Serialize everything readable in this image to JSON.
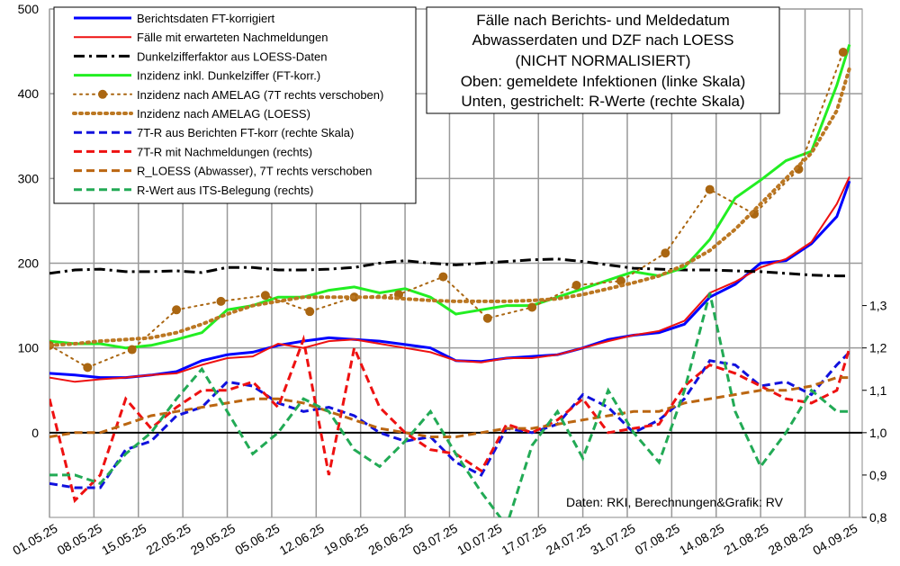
{
  "chart_data": {
    "type": "line",
    "annotations": [
      "Fälle nach Berichts- und Meldedatum",
      "Abwasserdaten und DZF nach LOESS",
      "(NICHT NORMALISIERT)",
      "Oben: gemeldete Infektionen (linke Skala)",
      "Unten, gestrichelt: R-Werte (rechte Skala)",
      "Daten: RKI, Berechnungen&Grafik: RV"
    ],
    "x": [
      "01.05.25",
      "05.05.25",
      "09.05.25",
      "13.05.25",
      "17.05.25",
      "21.05.25",
      "25.05.25",
      "29.05.25",
      "02.06.25",
      "06.06.25",
      "10.06.25",
      "14.06.25",
      "18.06.25",
      "22.06.25",
      "26.06.25",
      "30.06.25",
      "04.07.25",
      "08.07.25",
      "12.07.25",
      "16.07.25",
      "20.07.25",
      "24.07.25",
      "28.07.25",
      "01.08.25",
      "05.08.25",
      "09.08.25",
      "13.08.25",
      "17.08.25",
      "21.08.25",
      "25.08.25",
      "29.08.25",
      "02.09.25",
      "04.09.25"
    ],
    "xlim": [
      "01.05.25",
      "06.09.25"
    ],
    "xticks": [
      "01.05.25",
      "08.05.25",
      "15.05.25",
      "22.05.25",
      "29.05.25",
      "05.06.25",
      "12.06.25",
      "19.06.25",
      "26.06.25",
      "03.07.25",
      "10.07.25",
      "17.07.25",
      "24.07.25",
      "31.07.25",
      "07.08.25",
      "14.08.25",
      "21.08.25",
      "28.08.25",
      "04.09.25"
    ],
    "ylim": [
      -100,
      500
    ],
    "yticks": [
      0,
      100,
      200,
      300,
      400,
      500
    ],
    "y2lim": [
      0.8,
      2.0
    ],
    "y2ticks": [
      {
        "value": 0.8,
        "label": "0,8"
      },
      {
        "value": 0.9,
        "label": "0,9"
      },
      {
        "value": 1.0,
        "label": "1,0"
      },
      {
        "value": 1.1,
        "label": "1,1"
      },
      {
        "value": 1.2,
        "label": "1,2"
      },
      {
        "value": 1.3,
        "label": "1,3"
      }
    ],
    "grid": true,
    "legend": "upper left",
    "series": [
      {
        "name": "Berichtsdaten FT-korrigiert",
        "color": "#0000ff",
        "style": "solid",
        "width": 3,
        "values": [
          70,
          68,
          65,
          65,
          68,
          72,
          85,
          92,
          95,
          103,
          108,
          112,
          110,
          108,
          104,
          100,
          85,
          84,
          88,
          90,
          92,
          100,
          110,
          115,
          118,
          128,
          160,
          175,
          200,
          203,
          223,
          255,
          297
        ]
      },
      {
        "name": "Fälle mit erwarteten Nachmeldungen",
        "color": "#ee1111",
        "style": "solid",
        "width": 2,
        "values": [
          65,
          60,
          63,
          65,
          68,
          70,
          80,
          88,
          90,
          105,
          100,
          108,
          110,
          105,
          100,
          95,
          85,
          83,
          88,
          88,
          92,
          100,
          108,
          115,
          120,
          132,
          165,
          178,
          195,
          205,
          225,
          270,
          302
        ]
      },
      {
        "name": "Dunkelzifferfaktor aus LOESS-Daten",
        "color": "#000000",
        "style": "dashdot",
        "width": 3,
        "values": [
          188,
          192,
          193,
          190,
          190,
          191,
          189,
          195,
          195,
          192,
          192,
          193,
          195,
          200,
          203,
          200,
          198,
          200,
          202,
          204,
          205,
          202,
          198,
          194,
          193,
          192,
          192,
          191,
          190,
          188,
          186,
          185,
          185
        ]
      },
      {
        "name": "Inzidenz inkl. Dunkelziffer (FT-korr.)",
        "color": "#22ee22",
        "style": "solid",
        "width": 3,
        "values": [
          108,
          105,
          105,
          100,
          103,
          110,
          118,
          145,
          150,
          160,
          160,
          168,
          172,
          165,
          170,
          160,
          140,
          145,
          150,
          150,
          160,
          170,
          180,
          190,
          185,
          195,
          228,
          277,
          298,
          321,
          332,
          410,
          458
        ]
      },
      {
        "name": "Inzidenz nach AMELAG (7T rechts verschoben)",
        "color": "#aa6611",
        "style": "dotted",
        "width": 2,
        "marker": true,
        "x": [
          "01.05.25",
          "07.05.25",
          "14.05.25",
          "21.05.25",
          "28.05.25",
          "04.06.25",
          "11.06.25",
          "18.06.25",
          "25.06.25",
          "02.07.25",
          "09.07.25",
          "16.07.25",
          "23.07.25",
          "30.07.25",
          "06.08.25",
          "13.08.25",
          "20.08.25",
          "27.08.25",
          "03.09.25"
        ],
        "values": [
          103,
          77,
          98,
          145,
          155,
          162,
          143,
          160,
          163,
          184,
          135,
          148,
          174,
          179,
          212,
          287,
          258,
          311,
          449
        ]
      },
      {
        "name": "Inzidenz nach AMELAG (LOESS)",
        "color": "#bb7722",
        "style": "dotted",
        "width": 4,
        "values": [
          103,
          105,
          108,
          110,
          112,
          118,
          128,
          140,
          150,
          155,
          160,
          160,
          160,
          160,
          158,
          156,
          155,
          155,
          155,
          156,
          158,
          163,
          170,
          177,
          185,
          198,
          215,
          240,
          270,
          300,
          330,
          380,
          430
        ]
      },
      {
        "name": "7T-R aus Berichten FT-korr (rechte Skala)",
        "color": "#1111dd",
        "style": "dashed",
        "width": 3,
        "axis": "y2",
        "values": [
          0.88,
          0.87,
          0.87,
          0.96,
          0.98,
          1.04,
          1.06,
          1.12,
          1.11,
          1.07,
          1.05,
          1.06,
          1.04,
          1.0,
          0.98,
          0.99,
          0.93,
          0.9,
          1.01,
          1.0,
          1.02,
          1.09,
          1.06,
          1.0,
          1.03,
          1.08,
          1.17,
          1.16,
          1.11,
          1.12,
          1.09,
          1.16,
          1.19
        ]
      },
      {
        "name": "7T-R mit Nachmeldungen (rechts)",
        "color": "#ee1111",
        "style": "dashed",
        "width": 3,
        "axis": "y2",
        "values": [
          1.08,
          0.84,
          0.9,
          1.08,
          1.01,
          1.06,
          1.1,
          1.1,
          1.12,
          1.06,
          1.22,
          0.9,
          1.2,
          1.06,
          1.0,
          0.96,
          0.95,
          0.91,
          1.02,
          1.0,
          1.03,
          1.08,
          1.0,
          1.01,
          1.02,
          1.11,
          1.16,
          1.14,
          1.11,
          1.08,
          1.07,
          1.1,
          1.2
        ]
      },
      {
        "name": "R_LOESS (Abwasser), 7T rechts verschoben",
        "color": "#bb6611",
        "style": "dashed",
        "width": 3,
        "axis": "y2",
        "values": [
          0.99,
          1.0,
          1.0,
          1.02,
          1.04,
          1.05,
          1.06,
          1.07,
          1.08,
          1.08,
          1.07,
          1.05,
          1.03,
          1.01,
          1.0,
          0.99,
          0.99,
          1.0,
          1.01,
          1.01,
          1.02,
          1.03,
          1.04,
          1.05,
          1.05,
          1.07,
          1.08,
          1.09,
          1.1,
          1.1,
          1.11,
          1.13,
          1.13
        ]
      },
      {
        "name": "R-Wert aus ITS-Belegung (rechts)",
        "color": "#22aa55",
        "style": "dashed",
        "width": 3,
        "axis": "y2",
        "values": [
          0.9,
          0.9,
          0.88,
          0.95,
          1.0,
          1.08,
          1.15,
          1.05,
          0.95,
          1.0,
          1.08,
          1.05,
          0.96,
          0.92,
          0.98,
          1.05,
          0.95,
          0.86,
          0.78,
          0.97,
          1.05,
          0.94,
          1.1,
          1.0,
          0.93,
          1.1,
          1.33,
          1.05,
          0.92,
          1.0,
          1.1,
          1.05,
          1.05
        ]
      }
    ]
  }
}
